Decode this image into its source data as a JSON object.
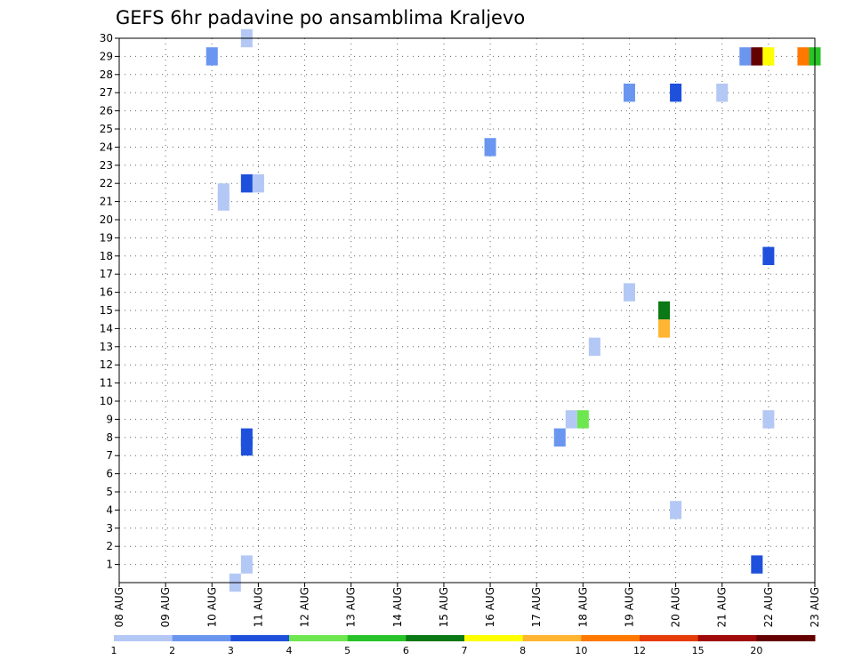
{
  "chart_data": {
    "type": "heatmap",
    "title": "GEFS 6hr padavine po ansamblima Kraljevo",
    "x_start_date": "08 AUG",
    "x_tick_labels": [
      "08 AUG",
      "09 AUG",
      "10 AUG",
      "11 AUG",
      "12 AUG",
      "13 AUG",
      "14 AUG",
      "15 AUG",
      "16 AUG",
      "17 AUG",
      "18 AUG",
      "19 AUG",
      "20 AUG",
      "21 AUG",
      "22 AUG",
      "23 AUG"
    ],
    "y_tick_labels": [
      "1",
      "2",
      "3",
      "4",
      "5",
      "6",
      "7",
      "8",
      "9",
      "10",
      "11",
      "12",
      "13",
      "14",
      "15",
      "16",
      "17",
      "18",
      "19",
      "20",
      "21",
      "22",
      "23",
      "24",
      "25",
      "26",
      "27",
      "28",
      "29",
      "30"
    ],
    "ylim": [
      0,
      30
    ],
    "grid": true,
    "colorbar": {
      "labels": [
        "1",
        "2",
        "3",
        "4",
        "5",
        "6",
        "7",
        "8",
        "10",
        "12",
        "15",
        "20"
      ],
      "colors": [
        "#b4c8f5",
        "#6a96f0",
        "#1e50dc",
        "#6ee650",
        "#28c328",
        "#0a7814",
        "#ffff00",
        "#ffb432",
        "#ff7800",
        "#e63c0a",
        "#a00a0a",
        "#640000"
      ]
    },
    "cells": [
      {
        "day": 2.0,
        "member": 29,
        "color": "#6a96f0"
      },
      {
        "day": 2.75,
        "member": 30,
        "color": "#b4c8f5"
      },
      {
        "day": 2.25,
        "member": 21.5,
        "color": "#b4c8f5"
      },
      {
        "day": 2.25,
        "member": 21,
        "color": "#b4c8f5"
      },
      {
        "day": 2.75,
        "member": 22,
        "color": "#1e50dc"
      },
      {
        "day": 3.0,
        "member": 22,
        "color": "#b4c8f5"
      },
      {
        "day": 2.75,
        "member": 8,
        "color": "#1e50dc"
      },
      {
        "day": 2.75,
        "member": 7.5,
        "color": "#1e50dc"
      },
      {
        "day": 2.75,
        "member": 1,
        "color": "#b4c8f5"
      },
      {
        "day": 2.5,
        "member": 0,
        "color": "#b4c8f5"
      },
      {
        "day": 8.0,
        "member": 24,
        "color": "#6a96f0"
      },
      {
        "day": 9.5,
        "member": 8,
        "color": "#6a96f0"
      },
      {
        "day": 9.75,
        "member": 9,
        "color": "#b4c8f5"
      },
      {
        "day": 10.0,
        "member": 9,
        "color": "#6ee650"
      },
      {
        "day": 10.25,
        "member": 13,
        "color": "#b4c8f5"
      },
      {
        "day": 11.0,
        "member": 27,
        "color": "#6a96f0"
      },
      {
        "day": 11.0,
        "member": 16,
        "color": "#b4c8f5"
      },
      {
        "day": 11.75,
        "member": 15,
        "color": "#0a7814"
      },
      {
        "day": 11.75,
        "member": 14,
        "color": "#ffb432"
      },
      {
        "day": 12.0,
        "member": 27,
        "color": "#1e50dc"
      },
      {
        "day": 12.0,
        "member": 4,
        "color": "#b4c8f5"
      },
      {
        "day": 13.0,
        "member": 27,
        "color": "#b4c8f5"
      },
      {
        "day": 13.5,
        "member": 29,
        "color": "#6a96f0"
      },
      {
        "day": 13.75,
        "member": 29,
        "color": "#640000"
      },
      {
        "day": 14.0,
        "member": 29,
        "color": "#ffff00"
      },
      {
        "day": 14.0,
        "member": 18,
        "color": "#1e50dc"
      },
      {
        "day": 14.0,
        "member": 9,
        "color": "#b4c8f5"
      },
      {
        "day": 13.75,
        "member": 1,
        "color": "#1e50dc"
      },
      {
        "day": 14.75,
        "member": 29,
        "color": "#ff7800"
      },
      {
        "day": 15.0,
        "member": 29,
        "color": "#28c328"
      }
    ]
  }
}
